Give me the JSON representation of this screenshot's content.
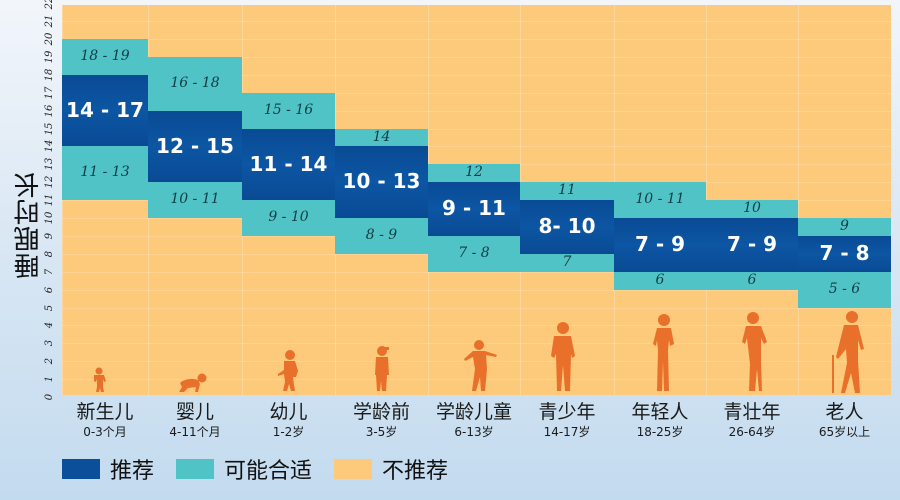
{
  "chart_data": {
    "type": "bar",
    "subtype": "range-stacked",
    "title": "",
    "ylabel": "睡眠时长",
    "xlabel": "",
    "ylim": [
      0,
      22
    ],
    "y_ticks": [
      0,
      1,
      2,
      3,
      4,
      5,
      6,
      7,
      8,
      9,
      10,
      11,
      12,
      13,
      14,
      15,
      16,
      17,
      18,
      19,
      20,
      21,
      22
    ],
    "grid": true,
    "legend_position": "bottom-left",
    "colors": {
      "recommended": "#0b4f9a",
      "may_be_appropriate": "#4fc3c6",
      "not_recommended": "#fdc97a"
    },
    "legend": [
      {
        "label": "推荐",
        "color": "#0b4f9a"
      },
      {
        "label": "可能合适",
        "color": "#4fc3c6"
      },
      {
        "label": "不推荐",
        "color": "#fdc97a"
      }
    ],
    "categories": [
      {
        "name": "新生儿",
        "age": "0-3个月",
        "figure": "infant-standing",
        "may_be_appropriate": [
          11,
          20
        ],
        "recommended": [
          14,
          18
        ],
        "top_label": "18 - 19",
        "main_label": "14 - 17",
        "bottom_label": "11 - 13"
      },
      {
        "name": "婴儿",
        "age": "4-11个月",
        "figure": "baby-crawling",
        "may_be_appropriate": [
          10,
          19
        ],
        "recommended": [
          12,
          16
        ],
        "top_label": "16 - 18",
        "main_label": "12 - 15",
        "bottom_label": "10 - 11"
      },
      {
        "name": "幼儿",
        "age": "1-2岁",
        "figure": "toddler-walking",
        "may_be_appropriate": [
          9,
          17
        ],
        "recommended": [
          11,
          15
        ],
        "top_label": "15 - 16",
        "main_label": "11 - 14",
        "bottom_label": "9 - 10"
      },
      {
        "name": "学龄前",
        "age": "3-5岁",
        "figure": "preschooler-cap",
        "may_be_appropriate": [
          8,
          15
        ],
        "recommended": [
          10,
          14
        ],
        "top_label": "14",
        "main_label": "10 - 13",
        "bottom_label": "8 - 9"
      },
      {
        "name": "学龄儿童",
        "age": "6-13岁",
        "figure": "child-arms-out",
        "may_be_appropriate": [
          7,
          13
        ],
        "recommended": [
          9,
          12
        ],
        "top_label": "12",
        "main_label": "9 - 11",
        "bottom_label": "7 - 8"
      },
      {
        "name": "青少年",
        "age": "14-17岁",
        "figure": "teen-standing",
        "may_be_appropriate": [
          7,
          12
        ],
        "recommended": [
          8,
          11
        ],
        "top_label": "11",
        "main_label": "8- 10",
        "bottom_label": "7"
      },
      {
        "name": "年轻人",
        "age": "18-25岁",
        "figure": "young-adult",
        "may_be_appropriate": [
          6,
          12
        ],
        "recommended": [
          7,
          10
        ],
        "top_label": "10 - 11",
        "main_label": "7 - 9",
        "bottom_label": "6"
      },
      {
        "name": "青壮年",
        "age": "26-64岁",
        "figure": "adult-woman",
        "may_be_appropriate": [
          6,
          11
        ],
        "recommended": [
          7,
          10
        ],
        "top_label": "10",
        "main_label": "7 - 9",
        "bottom_label": "6"
      },
      {
        "name": "老人",
        "age": "65岁以上",
        "figure": "elder-with-cane",
        "may_be_appropriate": [
          5,
          10
        ],
        "recommended": [
          7,
          9
        ],
        "top_label": "9",
        "main_label": "7 - 8",
        "bottom_label": "5 - 6"
      }
    ]
  },
  "axis": {
    "ylabel": "睡眠时长"
  },
  "legend": {
    "recommended": "推荐",
    "may_be_appropriate": "可能合适",
    "not_recommended": "不推荐"
  }
}
